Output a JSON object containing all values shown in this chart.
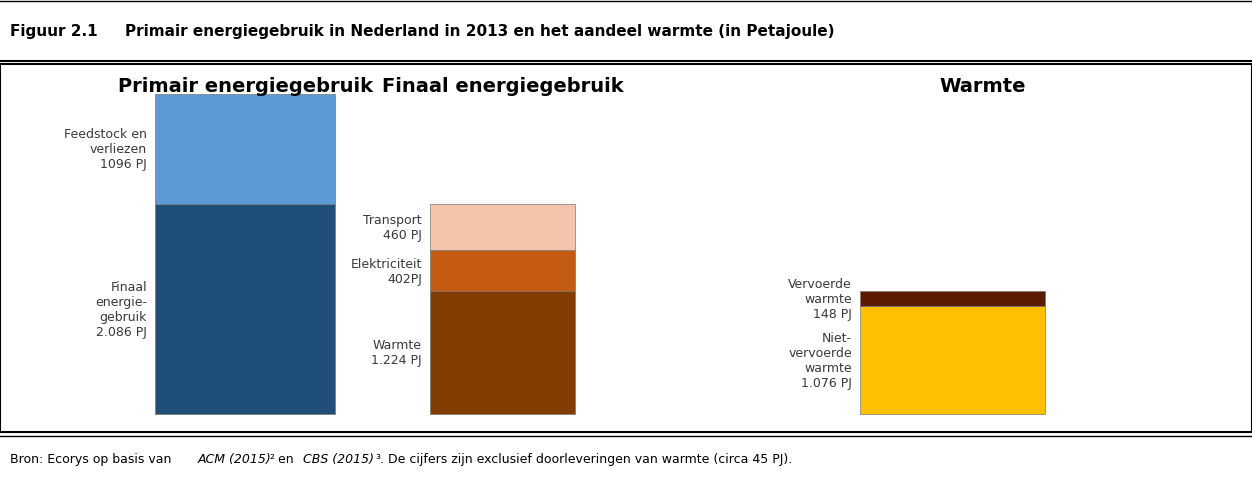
{
  "title_left": "Figuur 2.1",
  "title_main": "Primair energiegebruik in Nederland in 2013 en het aandeel warmte (in Petajoule)",
  "col1_title": "Primair energiegebruik",
  "col2_title": "Finaal energiegebruik",
  "col3_title": "Warmte",
  "bar1_segments": [
    {
      "label": "Feedstock en\nverliezen\n1096 PJ",
      "value": 1096,
      "color": "#5b9bd5"
    },
    {
      "label": "Finaal\nenergie-\ngebruik\n2.086 PJ",
      "value": 2086,
      "color": "#1f4e79"
    }
  ],
  "bar2_segments": [
    {
      "label": "Transport\n460 PJ",
      "value": 460,
      "color": "#f4c5aa"
    },
    {
      "label": "Elektriciteit\n402PJ",
      "value": 402,
      "color": "#c55a11"
    },
    {
      "label": "Warmte\n1.224 PJ",
      "value": 1224,
      "color": "#833c00"
    }
  ],
  "bar3_segments": [
    {
      "label": "Vervoerde\nwarmte\n148 PJ",
      "value": 148,
      "color": "#5c1a00"
    },
    {
      "label": "Niet-\nvervoerde\nwarmte\n1.076 PJ",
      "value": 1076,
      "color": "#ffc000"
    }
  ],
  "total_scale": 3182,
  "bar1_total": 3182,
  "bar2_total": 2086,
  "bar3_total": 1224,
  "background_color": "#ffffff"
}
